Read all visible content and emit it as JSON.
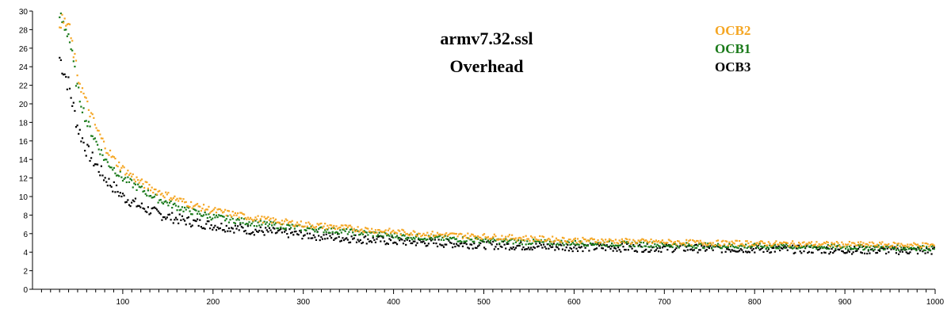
{
  "chart_data": {
    "type": "scatter",
    "title": "armv7.32.ssl",
    "subtitle": "Overhead",
    "xlabel": "",
    "ylabel": "",
    "xlim": [
      0,
      1000
    ],
    "ylim": [
      0,
      30
    ],
    "x_ticks_major": [
      100,
      200,
      300,
      400,
      500,
      600,
      700,
      800,
      900,
      1000
    ],
    "x_tick_minor_step": 10,
    "y_ticks": [
      0,
      2,
      4,
      6,
      8,
      10,
      12,
      14,
      16,
      18,
      20,
      22,
      24,
      26,
      28,
      30
    ],
    "grid": false,
    "legend_position": "top-right",
    "series": [
      {
        "name": "OCB2",
        "color": "#f5a623",
        "points": [
          [
            30,
            29.0
          ],
          [
            40,
            28.5
          ],
          [
            50,
            23.0
          ],
          [
            60,
            20.0
          ],
          [
            70,
            17.5
          ],
          [
            80,
            15.5
          ],
          [
            90,
            14.0
          ],
          [
            100,
            13.0
          ],
          [
            120,
            11.5
          ],
          [
            140,
            10.5
          ],
          [
            160,
            9.7
          ],
          [
            180,
            9.0
          ],
          [
            200,
            8.5
          ],
          [
            250,
            7.6
          ],
          [
            300,
            7.0
          ],
          [
            350,
            6.6
          ],
          [
            400,
            6.2
          ],
          [
            450,
            5.9
          ],
          [
            500,
            5.7
          ],
          [
            550,
            5.5
          ],
          [
            600,
            5.3
          ],
          [
            650,
            5.2
          ],
          [
            700,
            5.1
          ],
          [
            750,
            5.0
          ],
          [
            800,
            4.95
          ],
          [
            850,
            4.9
          ],
          [
            900,
            4.85
          ],
          [
            950,
            4.8
          ],
          [
            1000,
            4.75
          ]
        ]
      },
      {
        "name": "OCB1",
        "color": "#1a7a1a",
        "points": [
          [
            30,
            29.5
          ],
          [
            40,
            27.5
          ],
          [
            50,
            21.5
          ],
          [
            60,
            18.0
          ],
          [
            70,
            16.0
          ],
          [
            80,
            14.0
          ],
          [
            90,
            13.0
          ],
          [
            100,
            12.0
          ],
          [
            120,
            10.8
          ],
          [
            140,
            9.7
          ],
          [
            160,
            8.9
          ],
          [
            180,
            8.3
          ],
          [
            200,
            7.8
          ],
          [
            250,
            7.1
          ],
          [
            300,
            6.6
          ],
          [
            350,
            6.2
          ],
          [
            400,
            5.8
          ],
          [
            450,
            5.5
          ],
          [
            500,
            5.3
          ],
          [
            550,
            5.1
          ],
          [
            600,
            5.0
          ],
          [
            650,
            4.9
          ],
          [
            700,
            4.8
          ],
          [
            750,
            4.7
          ],
          [
            800,
            4.65
          ],
          [
            850,
            4.6
          ],
          [
            900,
            4.55
          ],
          [
            950,
            4.5
          ],
          [
            1000,
            4.45
          ]
        ]
      },
      {
        "name": "OCB3",
        "color": "#000000",
        "points": [
          [
            30,
            25.0
          ],
          [
            40,
            22.0
          ],
          [
            50,
            17.5
          ],
          [
            60,
            15.0
          ],
          [
            70,
            13.5
          ],
          [
            80,
            12.0
          ],
          [
            90,
            11.0
          ],
          [
            100,
            10.0
          ],
          [
            120,
            8.9
          ],
          [
            140,
            8.1
          ],
          [
            160,
            7.6
          ],
          [
            180,
            7.2
          ],
          [
            200,
            6.9
          ],
          [
            250,
            6.3
          ],
          [
            300,
            5.9
          ],
          [
            350,
            5.5
          ],
          [
            400,
            5.2
          ],
          [
            450,
            5.0
          ],
          [
            500,
            4.8
          ],
          [
            550,
            4.65
          ],
          [
            600,
            4.55
          ],
          [
            650,
            4.5
          ],
          [
            700,
            4.45
          ],
          [
            750,
            4.4
          ],
          [
            800,
            4.35
          ],
          [
            850,
            4.3
          ],
          [
            900,
            4.25
          ],
          [
            950,
            4.2
          ],
          [
            1000,
            4.15
          ]
        ]
      }
    ]
  }
}
